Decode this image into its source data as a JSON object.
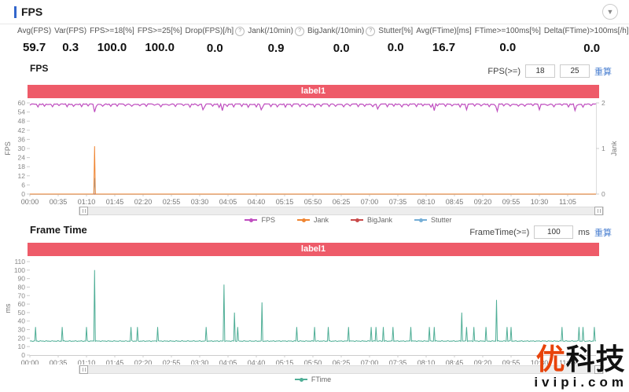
{
  "header": {
    "title": "FPS",
    "collapse_icon": "▼"
  },
  "stats": [
    {
      "label": "Avg(FPS)",
      "value": "59.7",
      "info": false
    },
    {
      "label": "Var(FPS)",
      "value": "0.3",
      "info": false
    },
    {
      "label": "FPS>=18[%]",
      "value": "100.0",
      "info": false
    },
    {
      "label": "FPS>=25[%]",
      "value": "100.0",
      "info": false
    },
    {
      "label": "Drop(FPS)[/h]",
      "value": "0.0",
      "info": true
    },
    {
      "label": "Jank(/10min)",
      "value": "0.9",
      "info": true
    },
    {
      "label": "BigJank(/10min)",
      "value": "0.0",
      "info": true
    },
    {
      "label": "Stutter[%]",
      "value": "0.0",
      "info": false
    },
    {
      "label": "Avg(FTime)[ms]",
      "value": "16.7",
      "info": false
    },
    {
      "label": "FTime>=100ms[%]",
      "value": "0.0",
      "info": false
    },
    {
      "label": "Delta(FTime)>100ms[/h]",
      "value": "0.0",
      "info": true
    }
  ],
  "fps_section": {
    "title": "FPS",
    "threshold_label": "FPS(>=)",
    "threshold_value_1": "18",
    "threshold_value_2": "25",
    "action_label": "重算"
  },
  "frametime_section": {
    "title": "Frame Time",
    "threshold_label": "FrameTime(>=)",
    "threshold_value": "100",
    "unit": "ms",
    "action_label": "重算"
  },
  "watermark": {
    "brand_first": "优",
    "brand_rest": "科技",
    "domain": "ivipi.com"
  },
  "chart_data": [
    {
      "type": "line",
      "title": "label1",
      "x_tick_interval_s": 35,
      "x_ticks": [
        "00:00",
        "00:35",
        "01:10",
        "01:45",
        "02:20",
        "02:55",
        "03:30",
        "04:05",
        "04:40",
        "05:15",
        "05:50",
        "06:25",
        "07:00",
        "07:35",
        "08:10",
        "08:45",
        "09:20",
        "09:55",
        "10:30",
        "11:05"
      ],
      "x_range_s": [
        0,
        700
      ],
      "ylabel_left": "FPS",
      "ylim_left": [
        0,
        60
      ],
      "yticks_left": [
        0,
        6,
        12,
        18,
        24,
        30,
        36,
        42,
        48,
        54,
        60
      ],
      "ylabel_right": "Jank",
      "ylim_right": [
        0,
        2
      ],
      "yticks_right": [
        0,
        1,
        2
      ],
      "legend": [
        {
          "name": "FPS",
          "color": "#bf4dbf"
        },
        {
          "name": "Jank",
          "color": "#ef8532"
        },
        {
          "name": "BigJank",
          "color": "#c94a4a"
        },
        {
          "name": "Stutter",
          "color": "#74aed6"
        }
      ],
      "series": {
        "fps": {
          "axis": "left",
          "baseline": 59.7,
          "deep_dips": {
            "80": 54,
            "214": 55.5,
            "238": 55,
            "286": 55.5,
            "430": 56,
            "500": 55,
            "540": 55.5,
            "578": 54.5,
            "630": 55.5,
            "674": 55
          }
        },
        "jank": {
          "axis": "right",
          "baseline": 0,
          "spikes": [
            [
              80,
              1.05
            ]
          ]
        },
        "bigjank": {
          "axis": "right",
          "baseline": 0,
          "spikes": []
        },
        "stutter": {
          "axis": "right",
          "baseline": 0,
          "spikes": [
            [
              80,
              0.35
            ]
          ]
        }
      }
    },
    {
      "type": "line",
      "title": "label1",
      "x_tick_interval_s": 35,
      "x_ticks": [
        "00:00",
        "00:35",
        "01:10",
        "01:45",
        "02:20",
        "02:55",
        "03:30",
        "04:05",
        "04:40",
        "05:15",
        "05:50",
        "06:25",
        "07:00",
        "07:35",
        "08:10",
        "08:45",
        "09:20",
        "09:55",
        "10:30",
        "11:05"
      ],
      "x_range_s": [
        0,
        700
      ],
      "ylabel_left": "ms",
      "ylim_left": [
        0,
        110
      ],
      "yticks_left": [
        0,
        10,
        20,
        30,
        40,
        50,
        60,
        70,
        80,
        90,
        100,
        110
      ],
      "legend": [
        {
          "name": "FTime",
          "color": "#4fae96"
        }
      ],
      "series": {
        "ftime": {
          "axis": "left",
          "baseline": 16.7,
          "spikes": [
            [
              7,
              33
            ],
            [
              40,
              33
            ],
            [
              70,
              33
            ],
            [
              80,
              100
            ],
            [
              125,
              33
            ],
            [
              133,
              33
            ],
            [
              158,
              33
            ],
            [
              218,
              33
            ],
            [
              240,
              83
            ],
            [
              253,
              50
            ],
            [
              257,
              33
            ],
            [
              287,
              62
            ],
            [
              330,
              33
            ],
            [
              352,
              33
            ],
            [
              369,
              33
            ],
            [
              394,
              33
            ],
            [
              422,
              33
            ],
            [
              428,
              33
            ],
            [
              437,
              33
            ],
            [
              449,
              33
            ],
            [
              471,
              33
            ],
            [
              494,
              33
            ],
            [
              500,
              33
            ],
            [
              534,
              50
            ],
            [
              540,
              33
            ],
            [
              549,
              33
            ],
            [
              564,
              33
            ],
            [
              577,
              65
            ],
            [
              590,
              33
            ],
            [
              595,
              33
            ],
            [
              658,
              33
            ],
            [
              679,
              33
            ],
            [
              684,
              33
            ],
            [
              698,
              33
            ]
          ]
        }
      }
    }
  ]
}
